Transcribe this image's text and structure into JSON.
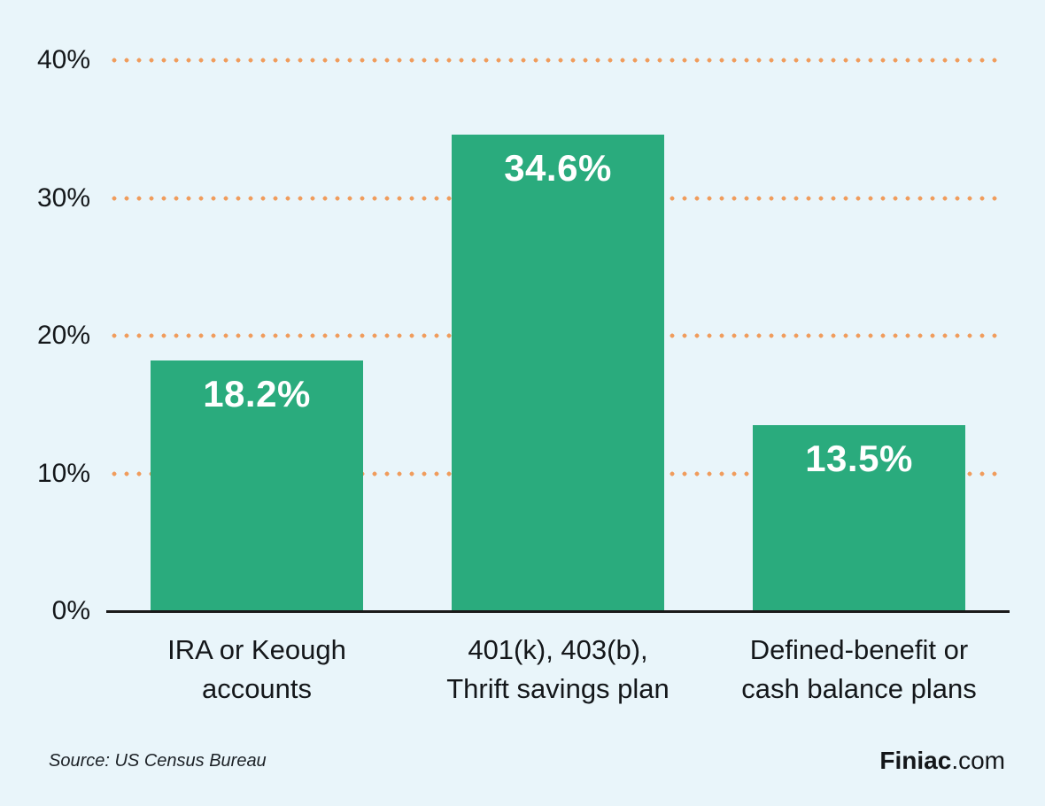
{
  "chart_data": {
    "type": "bar",
    "title": "",
    "xlabel": "",
    "ylabel": "",
    "categories": [
      "IRA or Keough accounts",
      "401(k), 403(b), Thrift savings plan",
      "Defined-benefit or cash balance plans"
    ],
    "category_lines": [
      [
        "IRA or Keough",
        "accounts"
      ],
      [
        "401(k), 403(b),",
        "Thrift savings plan"
      ],
      [
        "Defined-benefit or",
        "cash balance plans"
      ]
    ],
    "values": [
      18.2,
      34.6,
      13.5
    ],
    "value_labels": [
      "18.2%",
      "34.6%",
      "13.5%"
    ],
    "y_ticks": [
      0,
      10,
      20,
      30,
      40
    ],
    "y_tick_labels": [
      "0%",
      "10%",
      "20%",
      "30%",
      "40%"
    ],
    "ylim": [
      0,
      40
    ],
    "grid": "horizontal-dotted",
    "legend": "none",
    "colors": {
      "bar": "#2aab7d",
      "grid_dots": "#f09c5c",
      "background": "#e9f5fa",
      "axis": "#1a1a1a",
      "value_label_text": "#ffffff",
      "tick_text": "#14171a"
    }
  },
  "footer": {
    "source": "Source: US Census Bureau",
    "brand_name": "Finiac",
    "brand_suffix": ".com"
  }
}
